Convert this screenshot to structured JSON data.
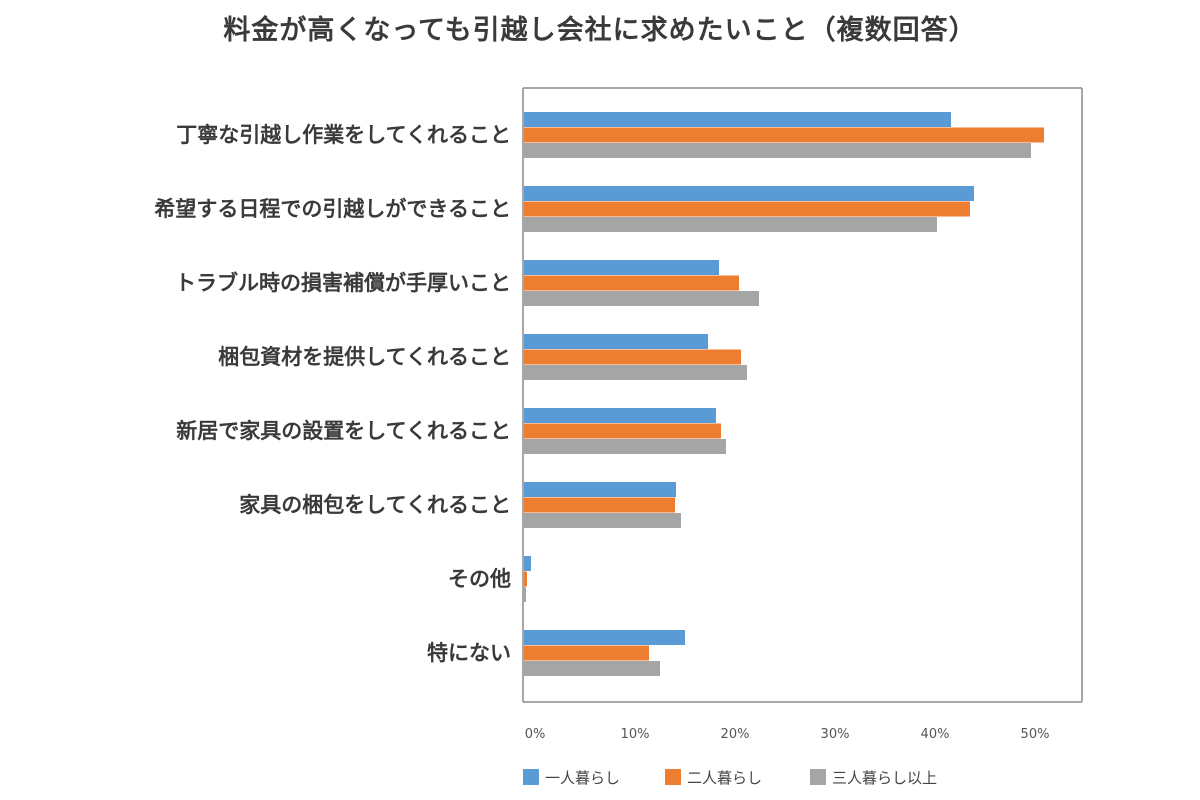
{
  "chart_data": {
    "type": "bar",
    "orientation": "horizontal",
    "title": "料金が高くなっても引越し会社に求めたいこと（複数回答）",
    "categories": [
      "丁寧な引越し作業をしてくれること",
      "希望する日程での引越しができること",
      "トラブル時の損害補償が手厚いこと",
      "梱包資材を提供してくれること",
      "新居で家具の設置をしてくれること",
      "家具の梱包をしてくれること",
      "その他",
      "特にない"
    ],
    "series": [
      {
        "name": "一人暮らし",
        "color": "#5b9bd5",
        "values": [
          42.7,
          45.0,
          19.5,
          18.4,
          19.2,
          15.2,
          0.7,
          16.1
        ]
      },
      {
        "name": "二人暮らし",
        "color": "#ed7d31",
        "values": [
          52.0,
          44.6,
          21.5,
          21.7,
          19.7,
          15.1,
          0.3,
          12.5
        ]
      },
      {
        "name": "三人暮らし以上",
        "color": "#a5a5a5",
        "values": [
          50.7,
          41.3,
          23.5,
          22.3,
          20.2,
          15.7,
          0.2,
          13.6
        ]
      }
    ],
    "x_ticks": [
      "0%",
      "10%",
      "20%",
      "30%",
      "40%",
      "50%"
    ],
    "xlim": [
      0,
      55
    ],
    "legend_position": "bottom",
    "grid": false
  }
}
